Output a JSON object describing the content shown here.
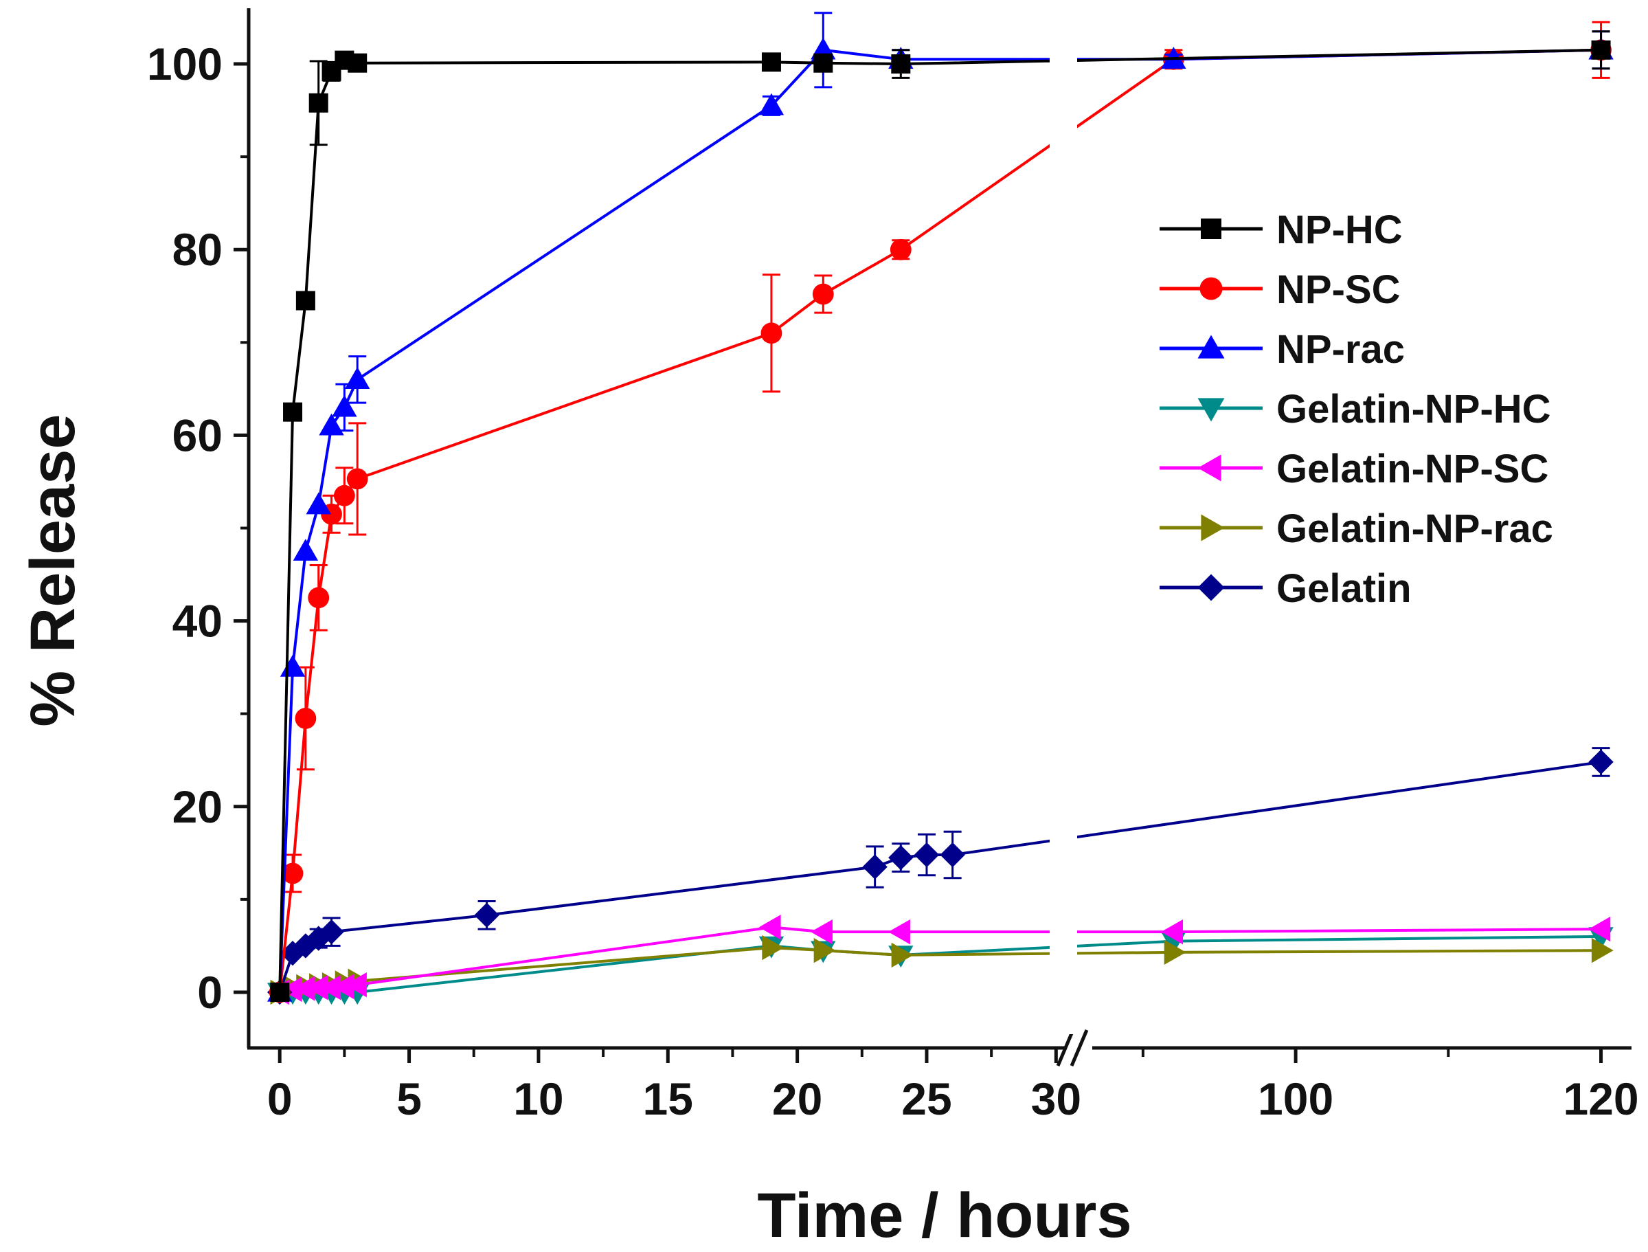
{
  "chart_data": {
    "type": "line",
    "title": "",
    "xlabel": "Time / hours",
    "ylabel": "% Release",
    "ylim": [
      -6,
      106
    ],
    "x_axis": {
      "broken": true,
      "segment1": {
        "range": [
          -1.2,
          31
        ],
        "ticks": [
          0,
          5,
          10,
          15,
          20,
          25,
          30
        ]
      },
      "segment2": {
        "range": [
          86,
          122
        ],
        "ticks": [
          100,
          120
        ]
      }
    },
    "y_ticks": [
      0,
      20,
      40,
      60,
      80,
      100
    ],
    "legend_position": "right-middle",
    "series": [
      {
        "name": "NP-HC",
        "color": "#000000",
        "marker": "square",
        "x": [
          0,
          0.5,
          1,
          1.5,
          2,
          2.5,
          3,
          19,
          21,
          24,
          120
        ],
        "y": [
          0,
          62.5,
          74.5,
          95.8,
          99.2,
          100.4,
          100.1,
          100.2,
          100.1,
          100.0,
          101.5
        ],
        "err": [
          0,
          0,
          0,
          4.5,
          1,
          0.5,
          0.5,
          0,
          0,
          1.5,
          2
        ]
      },
      {
        "name": "NP-SC",
        "color": "#ff0000",
        "marker": "circle",
        "x": [
          0,
          0.5,
          1,
          1.5,
          2,
          2.5,
          3,
          19,
          21,
          24,
          92,
          120
        ],
        "y": [
          0,
          12.8,
          29.5,
          42.5,
          51.5,
          53.5,
          55.3,
          71.0,
          75.2,
          80.0,
          100.5,
          101.5
        ],
        "err": [
          0,
          2,
          5.5,
          3.5,
          2,
          3,
          6,
          6.3,
          2,
          1,
          1,
          3
        ]
      },
      {
        "name": "NP-rac",
        "color": "#0000ff",
        "marker": "triangle-up",
        "x": [
          0,
          0.5,
          1,
          1.5,
          2,
          2.5,
          3,
          19,
          21,
          24,
          92,
          120
        ],
        "y": [
          0,
          35.0,
          47.5,
          52.5,
          61.0,
          63.0,
          66.0,
          95.5,
          101.5,
          100.5,
          100.5,
          101.5
        ],
        "err": [
          0,
          0,
          0,
          0,
          0,
          2.5,
          2.5,
          1,
          4,
          1,
          0.5,
          2
        ]
      },
      {
        "name": "Gelatin-NP-HC",
        "color": "#008b8b",
        "marker": "triangle-down",
        "x": [
          0,
          0.5,
          1,
          1.5,
          2,
          2.5,
          3,
          19,
          21,
          24,
          92,
          120
        ],
        "y": [
          0,
          0,
          0,
          0,
          0,
          0,
          0,
          5.0,
          4.5,
          4.0,
          5.5,
          6.0
        ],
        "err": [
          0,
          0,
          0,
          0,
          0,
          0,
          0,
          0,
          0,
          0,
          0,
          0
        ]
      },
      {
        "name": "Gelatin-NP-SC",
        "color": "#ff00ff",
        "marker": "triangle-left",
        "x": [
          0,
          0.5,
          1,
          1.5,
          2,
          2.5,
          3,
          19,
          21,
          24,
          92,
          120
        ],
        "y": [
          0,
          0.3,
          0.4,
          0.5,
          0.5,
          0.6,
          0.8,
          7.0,
          6.5,
          6.5,
          6.5,
          6.8
        ],
        "err": [
          0,
          0,
          0,
          0,
          0,
          0,
          0,
          0,
          0,
          0,
          0,
          0
        ]
      },
      {
        "name": "Gelatin-NP-rac",
        "color": "#808000",
        "marker": "triangle-right",
        "x": [
          0,
          0.5,
          1,
          1.5,
          2,
          2.5,
          3,
          19,
          21,
          24,
          92,
          120
        ],
        "y": [
          0,
          0.5,
          0.6,
          0.7,
          0.8,
          1.0,
          1.2,
          4.8,
          4.5,
          4.0,
          4.3,
          4.5
        ],
        "err": [
          0,
          0,
          0,
          0,
          0,
          0,
          0,
          0,
          0,
          0,
          0,
          0
        ]
      },
      {
        "name": "Gelatin",
        "color": "#00008b",
        "marker": "diamond",
        "x": [
          0,
          0.5,
          1,
          1.5,
          2,
          8,
          23,
          24,
          25,
          26,
          120
        ],
        "y": [
          0,
          4.2,
          5.0,
          5.8,
          6.5,
          8.3,
          13.5,
          14.5,
          14.8,
          14.8,
          24.8
        ],
        "err": [
          0,
          0,
          0,
          1,
          1.5,
          1.5,
          2.2,
          1.5,
          2.2,
          2.5,
          1.5
        ]
      }
    ]
  }
}
